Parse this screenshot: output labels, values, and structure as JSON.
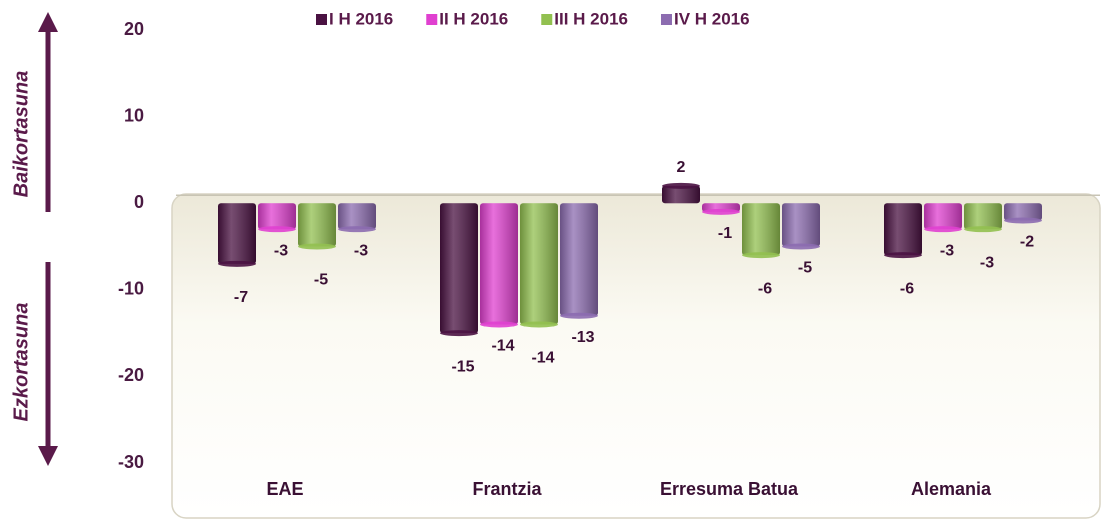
{
  "chart_data": {
    "type": "bar",
    "categories": [
      "EAE",
      "Frantzia",
      "Erresuma Batua",
      "Alemania"
    ],
    "series": [
      {
        "name": "I H 2016",
        "color": "#4a1242",
        "values": [
          -7,
          -15,
          2,
          -6
        ]
      },
      {
        "name": "II H 2016",
        "color": "#e040d0",
        "values": [
          -3,
          -14,
          -1,
          -3
        ]
      },
      {
        "name": "III H 2016",
        "color": "#92c050",
        "values": [
          -5,
          -14,
          -6,
          -3
        ]
      },
      {
        "name": "IV H 2016",
        "color": "#8c6cb0",
        "values": [
          -3,
          -13,
          -5,
          -2
        ]
      }
    ],
    "ylim": [
      -30,
      20
    ],
    "yticks": [
      -30,
      -20,
      -10,
      0,
      10,
      20
    ],
    "annotations": [
      "Baikortasuna",
      "Ezkortasuna"
    ],
    "legend": "top"
  }
}
